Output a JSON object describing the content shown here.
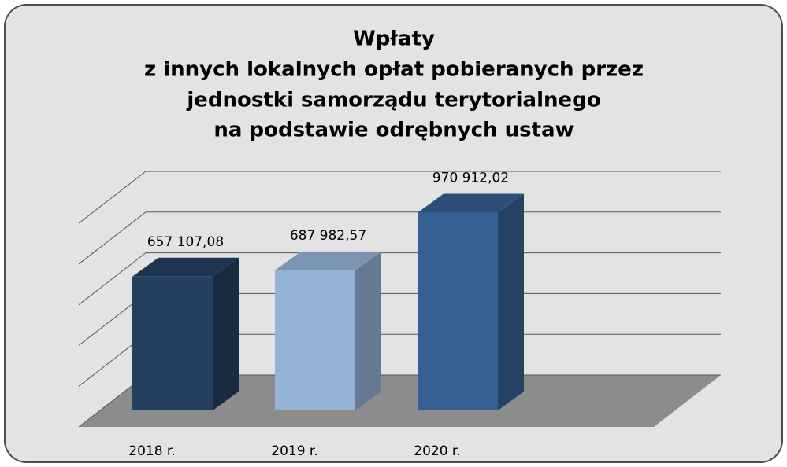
{
  "chart_data": {
    "type": "bar3d",
    "title": [
      "Wpłaty",
      "z innych lokalnych opłat pobieranych przez",
      "jednostki samorządu terytorialnego",
      "na podstawie odrębnych ustaw"
    ],
    "categories": [
      "2018 r.",
      "2019 r.",
      "2020 r."
    ],
    "values": [
      657107.08,
      687982.57,
      970912.02
    ],
    "value_labels": [
      "657 107,08",
      "687 982,57",
      "970 912,02"
    ],
    "colors": [
      "#243f60",
      "#95b3d7",
      "#366092"
    ],
    "ylim": [
      0,
      1000000
    ],
    "yticks": [
      0,
      200000,
      400000,
      600000,
      800000,
      1000000
    ],
    "grid": true
  }
}
